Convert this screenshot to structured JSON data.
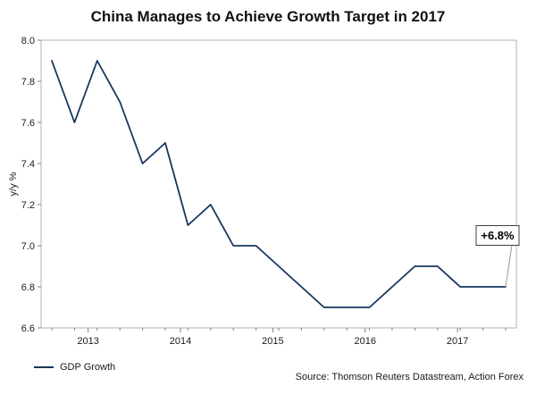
{
  "title": "China Manages to Achieve Growth Target in 2017",
  "chart_data": {
    "type": "line",
    "series": [
      {
        "name": "GDP Growth",
        "color": "#17365d",
        "values": [
          7.9,
          7.6,
          7.9,
          7.7,
          7.4,
          7.5,
          7.1,
          7.2,
          7.0,
          7.0,
          6.9,
          6.8,
          6.7,
          6.7,
          6.7,
          6.8,
          6.9,
          6.9,
          6.8,
          6.8,
          6.8
        ]
      }
    ],
    "x_tick_labels": [
      "2013",
      "2014",
      "2015",
      "2016",
      "2017"
    ],
    "y_ticks": [
      6.6,
      6.8,
      7.0,
      7.2,
      7.4,
      7.6,
      7.8,
      8.0
    ],
    "ylim": [
      6.6,
      8.0
    ],
    "ylabel": "y/y %",
    "grid": false,
    "legend_position": "bottom-left",
    "annotation": {
      "label": "+6.8%",
      "point_index": 20,
      "point_value": 6.8,
      "label_value": 7.05
    }
  },
  "legend": {
    "label": "GDP Growth"
  },
  "source": "Source: Thomson Reuters Datastream, Action Forex"
}
